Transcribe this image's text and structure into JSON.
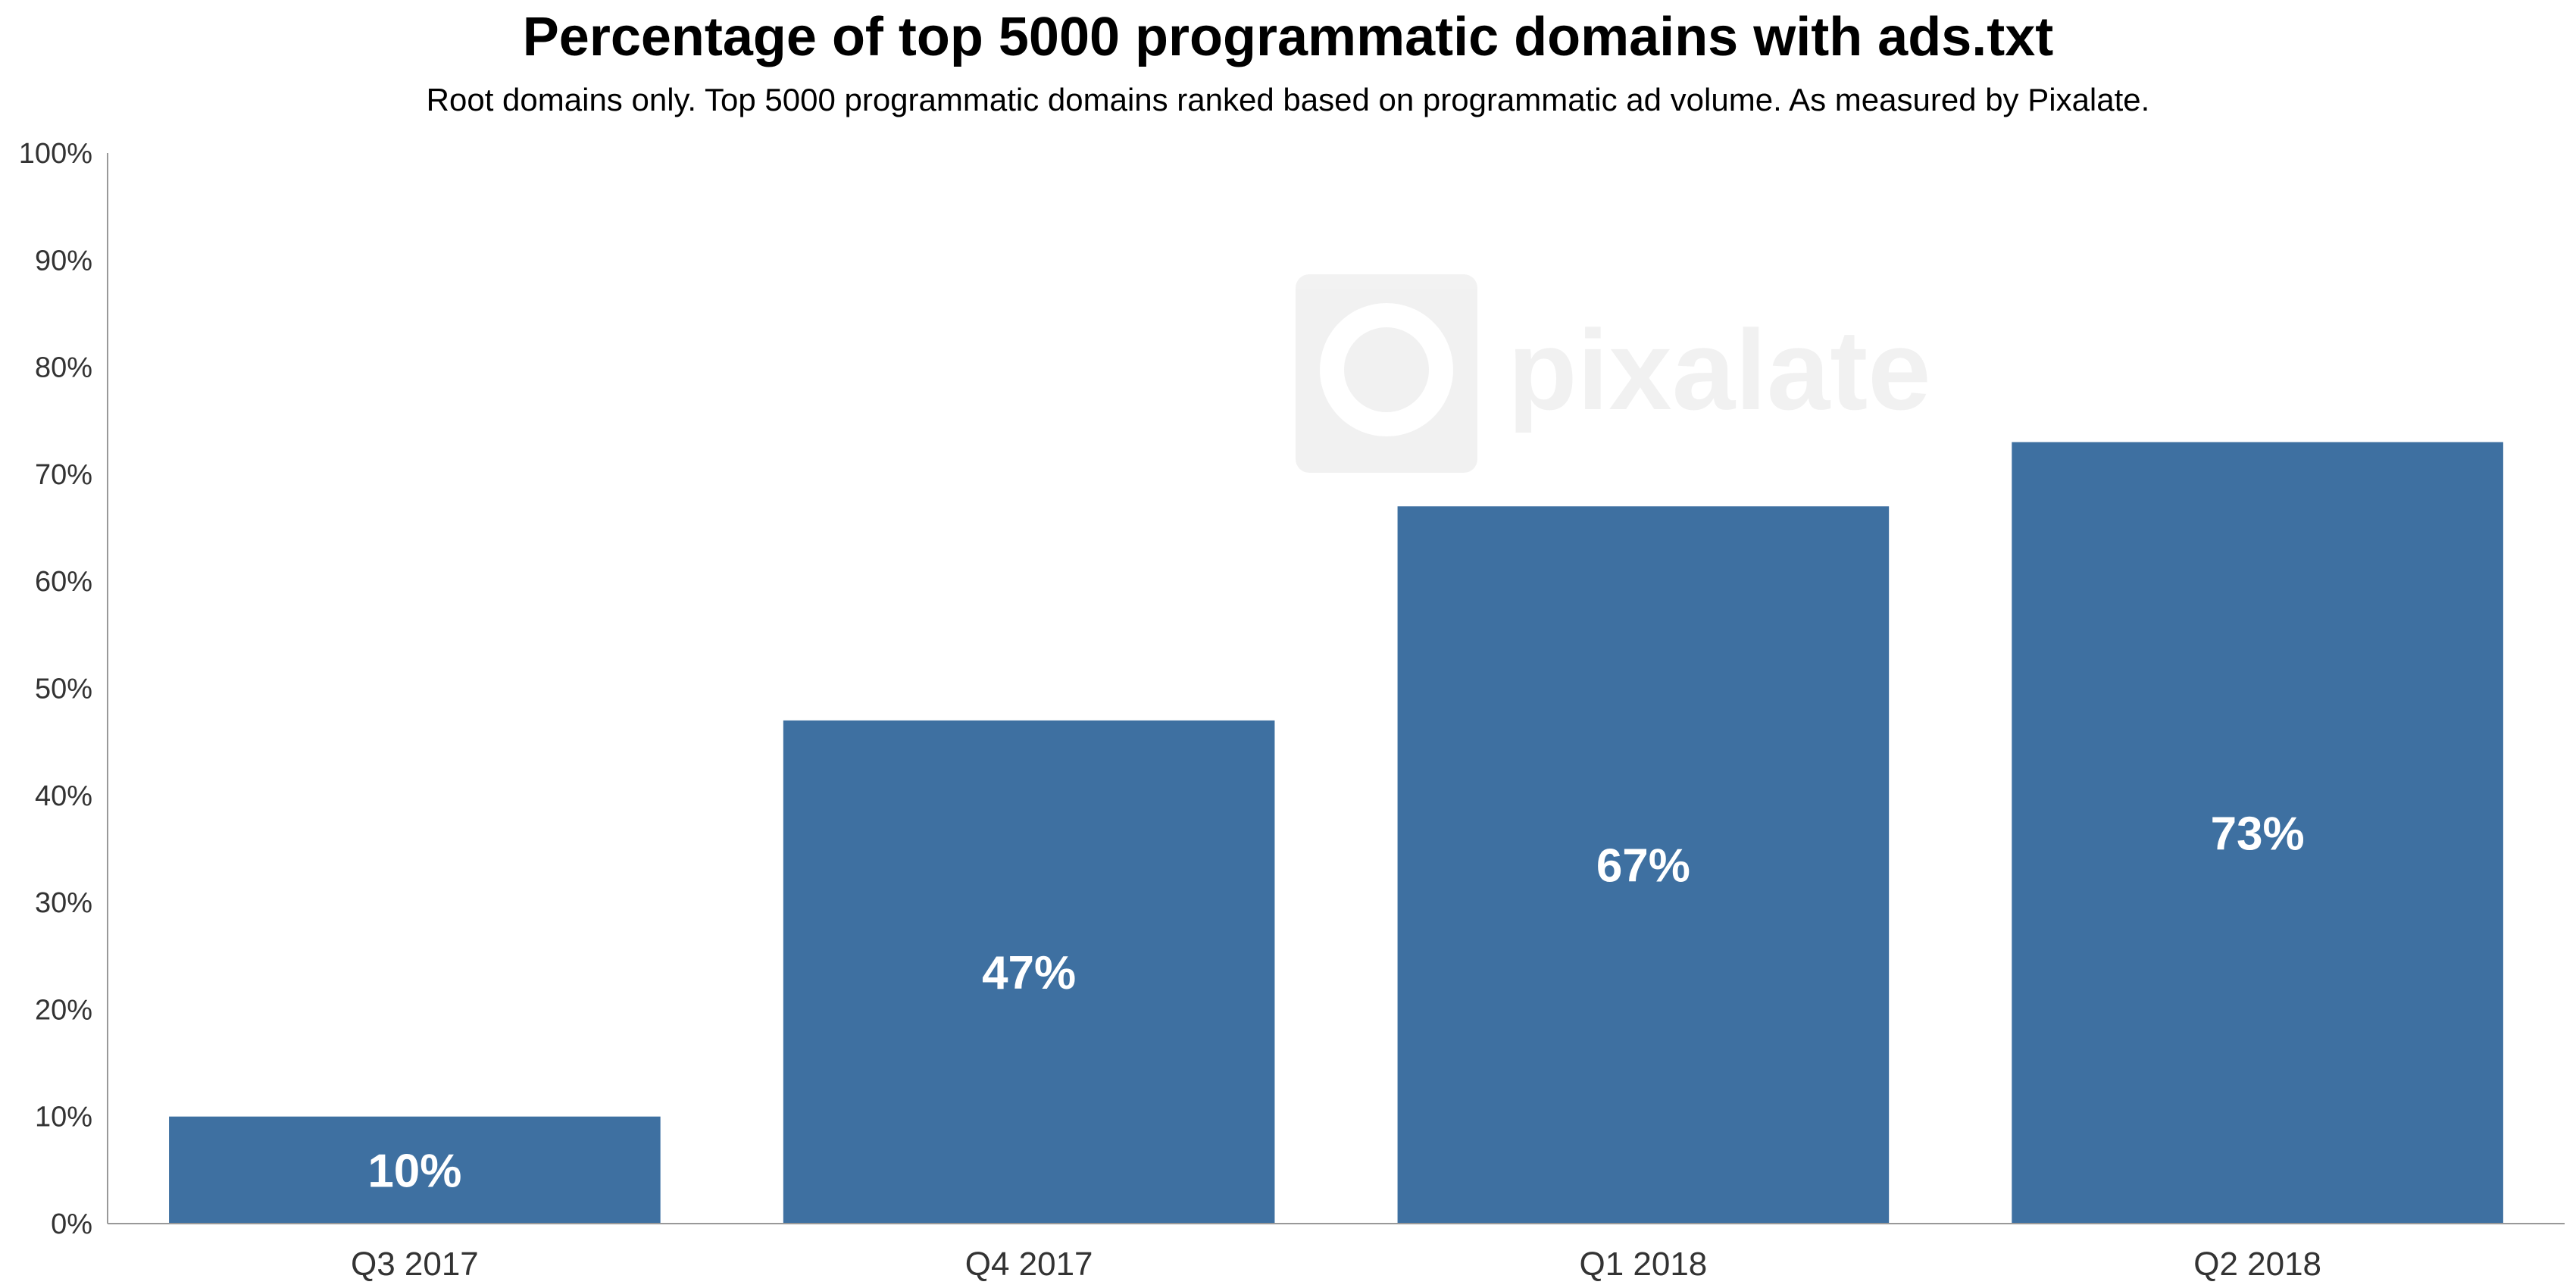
{
  "chart_data": {
    "type": "bar",
    "title": "Percentage of top 5000 programmatic domains with ads.txt",
    "subtitle": "Root domains only. Top 5000 programmatic domains ranked based on programmatic ad volume. As measured by Pixalate.",
    "categories": [
      "Q3 2017",
      "Q4 2017",
      "Q1 2018",
      "Q2 2018"
    ],
    "values": [
      10,
      47,
      67,
      73
    ],
    "data_labels": [
      "10%",
      "47%",
      "67%",
      "73%"
    ],
    "ylim": [
      0,
      100
    ],
    "yticks": [
      0,
      10,
      20,
      30,
      40,
      50,
      60,
      70,
      80,
      90,
      100
    ],
    "ytick_labels": [
      "0%",
      "10%",
      "20%",
      "30%",
      "40%",
      "50%",
      "60%",
      "70%",
      "80%",
      "90%",
      "100%"
    ],
    "xlabel": "",
    "ylabel": "",
    "grid": false,
    "legend": "none",
    "bar_color": "#3e70a1",
    "watermark": "pixalate"
  }
}
